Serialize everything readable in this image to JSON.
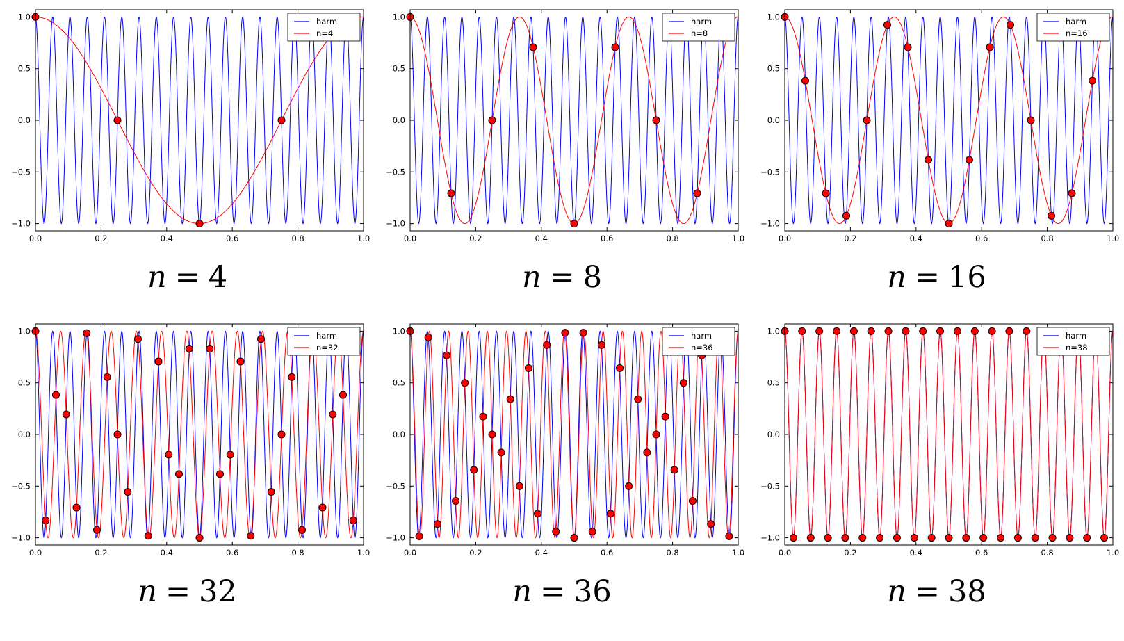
{
  "chart_data": [
    {
      "type": "line",
      "caption": {
        "symbol": "n",
        "eq": "=",
        "value": "4"
      },
      "n": 4,
      "xlim": [
        0,
        1
      ],
      "ylim": [
        -1.07,
        1.07
      ],
      "x_ticks": [
        0,
        0.2,
        0.4,
        0.6,
        0.8,
        1
      ],
      "x_tick_labels": [
        "0.0",
        "0.2",
        "0.4",
        "0.6",
        "0.8",
        "1.0"
      ],
      "y_ticks": [
        1,
        0.5,
        0,
        -0.5,
        -1
      ],
      "y_tick_labels": [
        "1.0",
        "0.5",
        "0.0",
        "−0.5",
        "−1.0"
      ],
      "grid": false,
      "legend": {
        "position": "upper right",
        "entries": [
          {
            "label": "harm",
            "color": "#0000ff"
          },
          {
            "label": "n=4",
            "color": "#ff0000"
          }
        ]
      },
      "series": [
        {
          "name": "harm",
          "function": "cos(2*pi*19*x)",
          "frequency": 19,
          "color": "#0000ff"
        },
        {
          "name": "n=4",
          "function": "cos(2*pi*1*x)",
          "frequency": 1,
          "color": "#ff0000"
        }
      ],
      "samples": {
        "marker": "circle",
        "fill": "#ff0000",
        "edge": "#000000",
        "x_rule": "x_k = k/4, k = 0..3",
        "y": [
          1,
          0,
          -1,
          0
        ]
      }
    },
    {
      "type": "line",
      "caption": {
        "symbol": "n",
        "eq": "=",
        "value": "8"
      },
      "n": 8,
      "xlim": [
        0,
        1
      ],
      "ylim": [
        -1.07,
        1.07
      ],
      "x_ticks": [
        0,
        0.2,
        0.4,
        0.6,
        0.8,
        1
      ],
      "x_tick_labels": [
        "0.0",
        "0.2",
        "0.4",
        "0.6",
        "0.8",
        "1.0"
      ],
      "y_ticks": [
        1,
        0.5,
        0,
        -0.5,
        -1
      ],
      "y_tick_labels": [
        "1.0",
        "0.5",
        "0.0",
        "−0.5",
        "−1.0"
      ],
      "grid": false,
      "legend": {
        "position": "upper right",
        "entries": [
          {
            "label": "harm",
            "color": "#0000ff"
          },
          {
            "label": "n=8",
            "color": "#ff0000"
          }
        ]
      },
      "series": [
        {
          "name": "harm",
          "function": "cos(2*pi*19*x)",
          "frequency": 19,
          "color": "#0000ff"
        },
        {
          "name": "n=8",
          "function": "cos(2*pi*3*x)",
          "frequency": 3,
          "color": "#ff0000"
        }
      ],
      "samples": {
        "marker": "circle",
        "fill": "#ff0000",
        "edge": "#000000",
        "x_rule": "x_k = k/8, k = 0..7",
        "y": [
          1,
          -0.707,
          0,
          0.707,
          -1,
          0.707,
          0,
          -0.707
        ]
      }
    },
    {
      "type": "line",
      "caption": {
        "symbol": "n",
        "eq": "=",
        "value": "16"
      },
      "n": 16,
      "xlim": [
        0,
        1
      ],
      "ylim": [
        -1.07,
        1.07
      ],
      "x_ticks": [
        0,
        0.2,
        0.4,
        0.6,
        0.8,
        1
      ],
      "x_tick_labels": [
        "0.0",
        "0.2",
        "0.4",
        "0.6",
        "0.8",
        "1.0"
      ],
      "y_ticks": [
        1,
        0.5,
        0,
        -0.5,
        -1
      ],
      "y_tick_labels": [
        "1.0",
        "0.5",
        "0.0",
        "−0.5",
        "−1.0"
      ],
      "grid": false,
      "legend": {
        "position": "upper right",
        "entries": [
          {
            "label": "harm",
            "color": "#0000ff"
          },
          {
            "label": "n=16",
            "color": "#ff0000"
          }
        ]
      },
      "series": [
        {
          "name": "harm",
          "function": "cos(2*pi*19*x)",
          "frequency": 19,
          "color": "#0000ff"
        },
        {
          "name": "n=16",
          "function": "cos(2*pi*3*x)",
          "frequency": 3,
          "color": "#ff0000"
        }
      ],
      "samples": {
        "marker": "circle",
        "fill": "#ff0000",
        "edge": "#000000",
        "x_rule": "x_k = k/16, k = 0..15",
        "y": [
          1,
          0.383,
          -0.707,
          -0.924,
          0,
          0.924,
          0.707,
          -0.383,
          -1,
          -0.383,
          0.707,
          0.924,
          0,
          -0.924,
          -0.707,
          0.383
        ]
      }
    },
    {
      "type": "line",
      "caption": {
        "symbol": "n",
        "eq": "=",
        "value": "32"
      },
      "n": 32,
      "xlim": [
        0,
        1
      ],
      "ylim": [
        -1.07,
        1.07
      ],
      "x_ticks": [
        0,
        0.2,
        0.4,
        0.6,
        0.8,
        1
      ],
      "x_tick_labels": [
        "0.0",
        "0.2",
        "0.4",
        "0.6",
        "0.8",
        "1.0"
      ],
      "y_ticks": [
        1,
        0.5,
        0,
        -0.5,
        -1
      ],
      "y_tick_labels": [
        "1.0",
        "0.5",
        "0.0",
        "−0.5",
        "−1.0"
      ],
      "grid": false,
      "legend": {
        "position": "upper right",
        "entries": [
          {
            "label": "harm",
            "color": "#0000ff"
          },
          {
            "label": "n=32",
            "color": "#ff0000"
          }
        ]
      },
      "series": [
        {
          "name": "harm",
          "function": "cos(2*pi*19*x)",
          "frequency": 19,
          "color": "#0000ff"
        },
        {
          "name": "n=32",
          "function": "cos(2*pi*13*x)",
          "frequency": 13,
          "color": "#ff0000"
        }
      ],
      "samples": {
        "marker": "circle",
        "fill": "#ff0000",
        "edge": "#000000",
        "x_rule": "x_k = k/32, k = 0..31",
        "y": [
          1,
          -0.831,
          0.383,
          0.195,
          -0.707,
          0.981,
          -0.924,
          0.556,
          0,
          -0.556,
          0.924,
          -0.981,
          0.707,
          -0.195,
          -0.383,
          0.831,
          -1,
          0.831,
          -0.383,
          -0.195,
          0.707,
          -0.981,
          0.924,
          -0.556,
          0,
          0.556,
          -0.924,
          0.981,
          -0.707,
          0.195,
          0.383,
          -0.831
        ]
      }
    },
    {
      "type": "line",
      "caption": {
        "symbol": "n",
        "eq": "=",
        "value": "36"
      },
      "n": 36,
      "xlim": [
        0,
        1
      ],
      "ylim": [
        -1.07,
        1.07
      ],
      "x_ticks": [
        0,
        0.2,
        0.4,
        0.6,
        0.8,
        1
      ],
      "x_tick_labels": [
        "0.0",
        "0.2",
        "0.4",
        "0.6",
        "0.8",
        "1.0"
      ],
      "y_ticks": [
        1,
        0.5,
        0,
        -0.5,
        -1
      ],
      "y_tick_labels": [
        "1.0",
        "0.5",
        "0.0",
        "−0.5",
        "−1.0"
      ],
      "grid": false,
      "legend": {
        "position": "upper right",
        "entries": [
          {
            "label": "harm",
            "color": "#0000ff"
          },
          {
            "label": "n=36",
            "color": "#ff0000"
          }
        ]
      },
      "series": [
        {
          "name": "harm",
          "function": "cos(2*pi*19*x)",
          "frequency": 19,
          "color": "#0000ff"
        },
        {
          "name": "n=36",
          "function": "cos(2*pi*17*x)",
          "frequency": 17,
          "color": "#ff0000"
        }
      ],
      "samples": {
        "marker": "circle",
        "fill": "#ff0000",
        "edge": "#000000",
        "x_rule": "x_k = k/36, k = 0..35",
        "y": [
          1,
          -0.985,
          0.94,
          -0.866,
          0.766,
          -0.643,
          0.5,
          -0.342,
          0.174,
          0,
          -0.174,
          0.342,
          -0.5,
          0.643,
          -0.766,
          0.866,
          -0.94,
          0.985,
          -1,
          0.985,
          -0.94,
          0.866,
          -0.766,
          0.643,
          -0.5,
          0.342,
          -0.174,
          0,
          0.174,
          -0.342,
          0.5,
          -0.643,
          0.766,
          -0.866,
          0.94,
          -0.985
        ]
      }
    },
    {
      "type": "line",
      "caption": {
        "symbol": "n",
        "eq": "=",
        "value": "38"
      },
      "n": 38,
      "xlim": [
        0,
        1
      ],
      "ylim": [
        -1.07,
        1.07
      ],
      "x_ticks": [
        0,
        0.2,
        0.4,
        0.6,
        0.8,
        1
      ],
      "x_tick_labels": [
        "0.0",
        "0.2",
        "0.4",
        "0.6",
        "0.8",
        "1.0"
      ],
      "y_ticks": [
        1,
        0.5,
        0,
        -0.5,
        -1
      ],
      "y_tick_labels": [
        "1.0",
        "0.5",
        "0.0",
        "−0.5",
        "−1.0"
      ],
      "grid": false,
      "legend": {
        "position": "upper right",
        "entries": [
          {
            "label": "harm",
            "color": "#0000ff"
          },
          {
            "label": "n=38",
            "color": "#ff0000"
          }
        ]
      },
      "series": [
        {
          "name": "harm",
          "function": "cos(2*pi*19*x)",
          "frequency": 19,
          "color": "#0000ff"
        },
        {
          "name": "n=38",
          "function": "cos(2*pi*19*x)",
          "frequency": 19,
          "color": "#ff0000"
        }
      ],
      "samples": {
        "marker": "circle",
        "fill": "#ff0000",
        "edge": "#000000",
        "x_rule": "x_k = k/38, k = 0..37",
        "y": [
          1,
          -1,
          1,
          -1,
          1,
          -1,
          1,
          -1,
          1,
          -1,
          1,
          -1,
          1,
          -1,
          1,
          -1,
          1,
          -1,
          1,
          -1,
          1,
          -1,
          1,
          -1,
          1,
          -1,
          1,
          -1,
          1,
          -1,
          1,
          -1,
          1,
          -1,
          1,
          -1,
          1,
          -1
        ]
      }
    }
  ]
}
